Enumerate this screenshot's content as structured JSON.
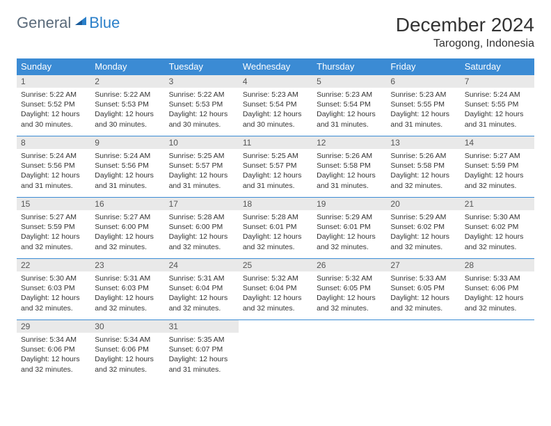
{
  "logo": {
    "general": "General",
    "blue": "Blue"
  },
  "title": "December 2024",
  "location": "Tarogong, Indonesia",
  "dow": [
    "Sunday",
    "Monday",
    "Tuesday",
    "Wednesday",
    "Thursday",
    "Friday",
    "Saturday"
  ],
  "colors": {
    "header_bg": "#3b8bd4",
    "header_text": "#ffffff",
    "daynum_bg": "#e9e9e9",
    "rule": "#3b8bd4",
    "text": "#333333",
    "logo_gray": "#5a6a7a",
    "logo_blue": "#2a7fc9"
  },
  "days": [
    {
      "n": 1,
      "sr": "5:22 AM",
      "ss": "5:52 PM",
      "dl": "12 hours and 30 minutes."
    },
    {
      "n": 2,
      "sr": "5:22 AM",
      "ss": "5:53 PM",
      "dl": "12 hours and 30 minutes."
    },
    {
      "n": 3,
      "sr": "5:22 AM",
      "ss": "5:53 PM",
      "dl": "12 hours and 30 minutes."
    },
    {
      "n": 4,
      "sr": "5:23 AM",
      "ss": "5:54 PM",
      "dl": "12 hours and 30 minutes."
    },
    {
      "n": 5,
      "sr": "5:23 AM",
      "ss": "5:54 PM",
      "dl": "12 hours and 31 minutes."
    },
    {
      "n": 6,
      "sr": "5:23 AM",
      "ss": "5:55 PM",
      "dl": "12 hours and 31 minutes."
    },
    {
      "n": 7,
      "sr": "5:24 AM",
      "ss": "5:55 PM",
      "dl": "12 hours and 31 minutes."
    },
    {
      "n": 8,
      "sr": "5:24 AM",
      "ss": "5:56 PM",
      "dl": "12 hours and 31 minutes."
    },
    {
      "n": 9,
      "sr": "5:24 AM",
      "ss": "5:56 PM",
      "dl": "12 hours and 31 minutes."
    },
    {
      "n": 10,
      "sr": "5:25 AM",
      "ss": "5:57 PM",
      "dl": "12 hours and 31 minutes."
    },
    {
      "n": 11,
      "sr": "5:25 AM",
      "ss": "5:57 PM",
      "dl": "12 hours and 31 minutes."
    },
    {
      "n": 12,
      "sr": "5:26 AM",
      "ss": "5:58 PM",
      "dl": "12 hours and 31 minutes."
    },
    {
      "n": 13,
      "sr": "5:26 AM",
      "ss": "5:58 PM",
      "dl": "12 hours and 32 minutes."
    },
    {
      "n": 14,
      "sr": "5:27 AM",
      "ss": "5:59 PM",
      "dl": "12 hours and 32 minutes."
    },
    {
      "n": 15,
      "sr": "5:27 AM",
      "ss": "5:59 PM",
      "dl": "12 hours and 32 minutes."
    },
    {
      "n": 16,
      "sr": "5:27 AM",
      "ss": "6:00 PM",
      "dl": "12 hours and 32 minutes."
    },
    {
      "n": 17,
      "sr": "5:28 AM",
      "ss": "6:00 PM",
      "dl": "12 hours and 32 minutes."
    },
    {
      "n": 18,
      "sr": "5:28 AM",
      "ss": "6:01 PM",
      "dl": "12 hours and 32 minutes."
    },
    {
      "n": 19,
      "sr": "5:29 AM",
      "ss": "6:01 PM",
      "dl": "12 hours and 32 minutes."
    },
    {
      "n": 20,
      "sr": "5:29 AM",
      "ss": "6:02 PM",
      "dl": "12 hours and 32 minutes."
    },
    {
      "n": 21,
      "sr": "5:30 AM",
      "ss": "6:02 PM",
      "dl": "12 hours and 32 minutes."
    },
    {
      "n": 22,
      "sr": "5:30 AM",
      "ss": "6:03 PM",
      "dl": "12 hours and 32 minutes."
    },
    {
      "n": 23,
      "sr": "5:31 AM",
      "ss": "6:03 PM",
      "dl": "12 hours and 32 minutes."
    },
    {
      "n": 24,
      "sr": "5:31 AM",
      "ss": "6:04 PM",
      "dl": "12 hours and 32 minutes."
    },
    {
      "n": 25,
      "sr": "5:32 AM",
      "ss": "6:04 PM",
      "dl": "12 hours and 32 minutes."
    },
    {
      "n": 26,
      "sr": "5:32 AM",
      "ss": "6:05 PM",
      "dl": "12 hours and 32 minutes."
    },
    {
      "n": 27,
      "sr": "5:33 AM",
      "ss": "6:05 PM",
      "dl": "12 hours and 32 minutes."
    },
    {
      "n": 28,
      "sr": "5:33 AM",
      "ss": "6:06 PM",
      "dl": "12 hours and 32 minutes."
    },
    {
      "n": 29,
      "sr": "5:34 AM",
      "ss": "6:06 PM",
      "dl": "12 hours and 32 minutes."
    },
    {
      "n": 30,
      "sr": "5:34 AM",
      "ss": "6:06 PM",
      "dl": "12 hours and 32 minutes."
    },
    {
      "n": 31,
      "sr": "5:35 AM",
      "ss": "6:07 PM",
      "dl": "12 hours and 31 minutes."
    }
  ],
  "labels": {
    "sunrise": "Sunrise:",
    "sunset": "Sunset:",
    "daylight": "Daylight:"
  }
}
